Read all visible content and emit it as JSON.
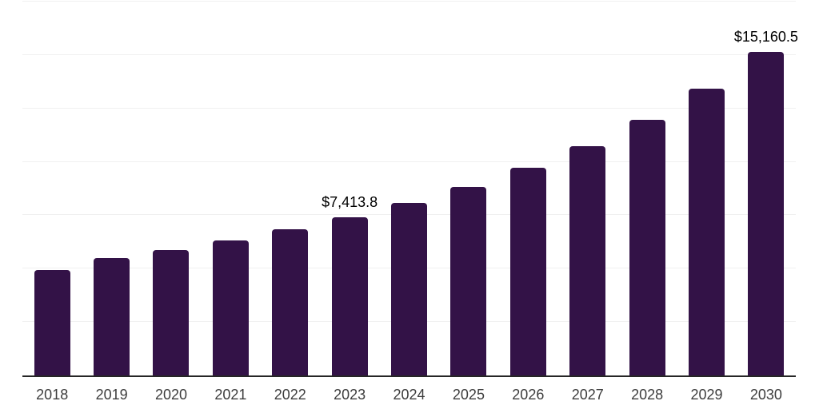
{
  "chart_data": {
    "type": "bar",
    "title": "",
    "xlabel": "",
    "ylabel": "",
    "categories": [
      "2018",
      "2019",
      "2020",
      "2021",
      "2022",
      "2023",
      "2024",
      "2025",
      "2026",
      "2027",
      "2028",
      "2029",
      "2030"
    ],
    "values": [
      4920,
      5500,
      5870,
      6320,
      6840,
      7413.8,
      8080,
      8820,
      9720,
      10730,
      11950,
      13420,
      15160.5
    ],
    "annotations": [
      {
        "category": "2023",
        "text": "$7,413.8"
      },
      {
        "category": "2030",
        "text": "$15,160.5"
      }
    ],
    "ylim": [
      0,
      17500
    ],
    "grid_step": 2500,
    "grid": true,
    "legend": false,
    "y_axis_tick_labels_visible": false
  },
  "style": {
    "background": "#ffffff",
    "bar_color": "#331247",
    "gridline_color": "#f0f0f0",
    "axis_line_color": "#262626",
    "tick_label_color": "#3d3d3d",
    "data_label_color": "#000000"
  }
}
